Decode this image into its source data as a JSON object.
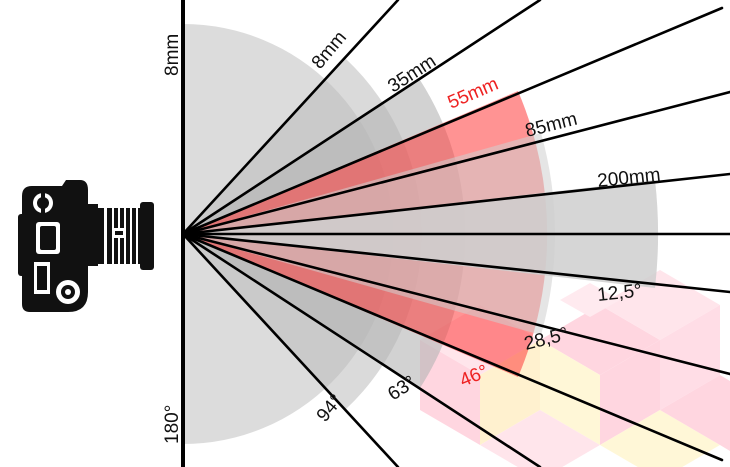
{
  "diagram": {
    "vertical_labels": {
      "top": "8mm",
      "bottom": "180°"
    },
    "focal_length_labels": [
      "8mm",
      "35mm",
      "55mm",
      "85mm",
      "200mm"
    ],
    "angle_labels": [
      "12,5°",
      "28,5°",
      "46°",
      "63°",
      "94°"
    ],
    "highlighted": {
      "focal_length": "55mm",
      "angle": "46°"
    },
    "colors": {
      "background": "#ffffff",
      "rays": "#000000",
      "sector_gray": "#c8c8c8",
      "highlight_red": "#ff3b3b",
      "highlight_label": "#ee2222",
      "decor_pink": "#ffb3c6",
      "decor_yellow": "#fff1b8",
      "camera": "#111111"
    },
    "icons": {
      "camera": "dslr-camera-icon"
    }
  }
}
